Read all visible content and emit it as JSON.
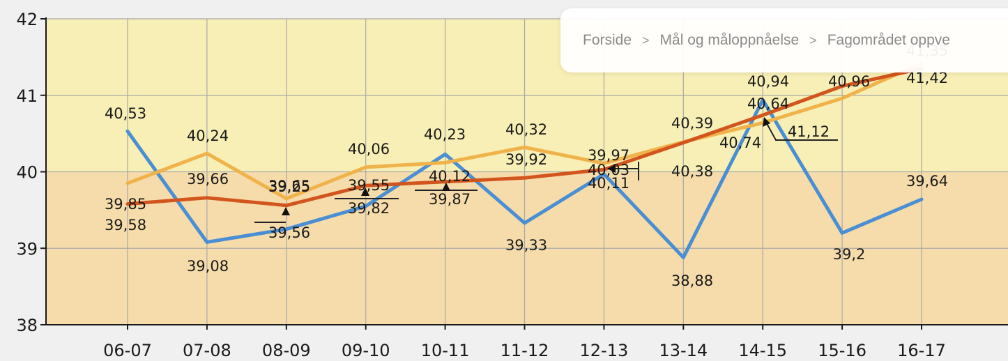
{
  "breadcrumb": {
    "items": [
      "Forside",
      "Mål og måloppnåelse",
      "Fagområdet oppve"
    ],
    "separator": ">"
  },
  "colors": {
    "series_blue": "#4a8ed3",
    "series_light_orange": "#f0b24a",
    "series_dark_orange": "#d2551e",
    "band_upper": "#f7efb5",
    "band_lower": "#f6dcab",
    "background": "#f0f0f0"
  },
  "chart_data": {
    "type": "line",
    "categories": [
      "06-07",
      "07-08",
      "08-09",
      "09-10",
      "10-11",
      "11-12",
      "12-13",
      "13-14",
      "14-15",
      "15-16",
      "16-17"
    ],
    "ylim": [
      38,
      42
    ],
    "yticks": [
      "38",
      "39",
      "40",
      "41",
      "42"
    ],
    "grid": true,
    "series": [
      {
        "values": [
          40.53,
          39.08,
          39.25,
          39.55,
          40.23,
          39.33,
          39.97,
          38.88,
          40.94,
          39.2,
          39.64
        ],
        "labels": [
          "40,53",
          "39,08",
          "39,25",
          "39,55",
          "40,23",
          "39,33",
          "39,97",
          "38,88",
          "40,94",
          "39,2",
          "39,64"
        ]
      },
      {
        "values": [
          39.85,
          40.24,
          39.65,
          40.06,
          40.12,
          40.32,
          40.11,
          40.39,
          40.64,
          40.96,
          41.42
        ],
        "labels": [
          "39,85",
          "40,24",
          "39,65",
          "40,06",
          "40,12",
          "40,32",
          "40,11",
          "40,39",
          "40,64",
          "40,96",
          "41,42"
        ]
      },
      {
        "values": [
          39.58,
          39.66,
          39.56,
          39.82,
          39.87,
          39.92,
          40.03,
          40.38,
          40.74,
          41.12,
          41.35
        ],
        "labels": [
          "39,58",
          "39,66",
          "39,56",
          "39,82",
          "39,87",
          "39,92",
          "40,03",
          "40,38",
          "40,74",
          "41,12",
          "41,35"
        ]
      }
    ]
  }
}
